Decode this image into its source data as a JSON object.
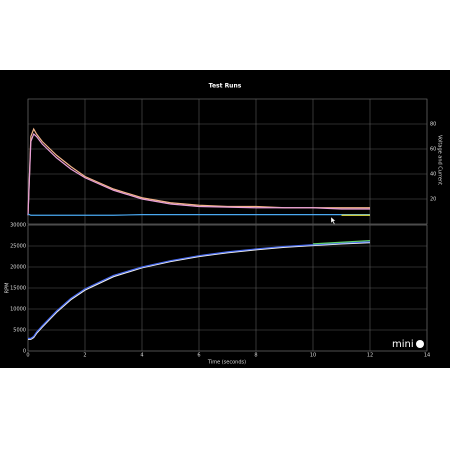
{
  "chart_data": [
    {
      "type": "line",
      "title": "Test Runs",
      "y2label": "Voltage and Current",
      "x": [
        0,
        0.1,
        0.2,
        0.3,
        0.5,
        1,
        1.5,
        2,
        3,
        4,
        5,
        6,
        7,
        8,
        9,
        10,
        11,
        12
      ],
      "xlim": [
        0,
        14
      ],
      "y2lim": [
        0,
        100
      ],
      "y2ticks": [
        20,
        40,
        60,
        80
      ],
      "grid": true,
      "series": [
        {
          "color": "#f2b48a",
          "axis": "y2",
          "values": [
            7,
            70,
            76,
            72,
            66,
            55,
            46,
            38,
            28,
            21,
            17,
            15,
            14,
            14,
            13,
            13,
            13,
            13
          ]
        },
        {
          "color": "#e8a0d8",
          "axis": "y2",
          "values": [
            7,
            66,
            72,
            70,
            64,
            53,
            44,
            37,
            27,
            20,
            16,
            14,
            13.5,
            13,
            13,
            13,
            12,
            12
          ]
        },
        {
          "color": "#4aa8f0",
          "axis": "y2",
          "values": [
            8,
            7,
            7,
            7,
            7,
            7,
            7,
            7,
            7,
            7.5,
            7.5,
            7.5,
            7.5,
            7.5,
            7.5,
            7.5,
            7.5,
            7.5
          ]
        },
        {
          "color": "#e8e040",
          "axis": "y2",
          "values": [
            null,
            null,
            null,
            null,
            null,
            null,
            null,
            null,
            null,
            null,
            null,
            null,
            null,
            null,
            null,
            null,
            7,
            7
          ]
        }
      ]
    },
    {
      "type": "line",
      "ylabel": "RPM",
      "xlabel": "Time (seconds)",
      "x": [
        0,
        0.1,
        0.2,
        0.3,
        0.5,
        1,
        1.5,
        2,
        3,
        4,
        5,
        6,
        7,
        8,
        9,
        10,
        11,
        12
      ],
      "xlim": [
        0,
        14
      ],
      "xticks": [
        0,
        2,
        4,
        6,
        8,
        10,
        12,
        14
      ],
      "ylim": [
        0,
        30000
      ],
      "yticks": [
        0,
        5000,
        10000,
        15000,
        20000,
        25000,
        30000
      ],
      "grid": true,
      "series": [
        {
          "color": "#eeeeee",
          "values": [
            2800,
            2800,
            3200,
            4200,
            5700,
            9200,
            12200,
            14500,
            17700,
            19800,
            21300,
            22500,
            23400,
            24100,
            24700,
            25100,
            25500,
            25800
          ]
        },
        {
          "color": "#4a6cf0",
          "values": [
            3000,
            3000,
            3500,
            4500,
            6000,
            9500,
            12500,
            14800,
            18000,
            20000,
            21500,
            22700,
            23600,
            24300,
            24900,
            25300,
            25700,
            26000
          ]
        },
        {
          "color": "#5fd068",
          "values": [
            null,
            null,
            null,
            null,
            null,
            null,
            null,
            null,
            null,
            null,
            null,
            null,
            null,
            null,
            null,
            25500,
            25900,
            26300
          ]
        }
      ]
    }
  ],
  "logo": "mini"
}
